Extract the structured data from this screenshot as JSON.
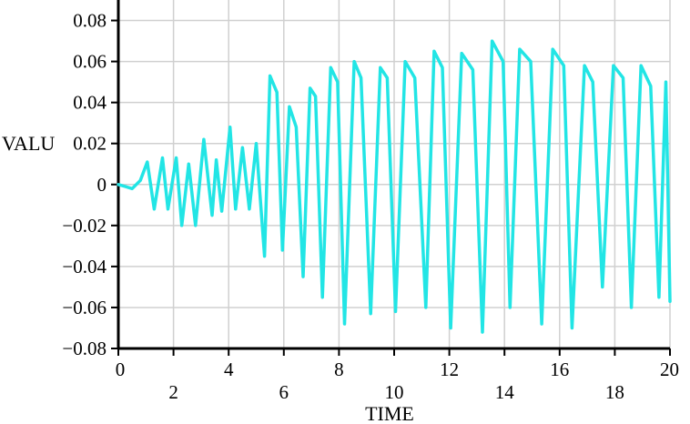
{
  "chart_data": {
    "type": "line",
    "title": "",
    "xlabel": "TIME",
    "ylabel": "VALU",
    "xlim": [
      0,
      20
    ],
    "ylim": [
      -0.08,
      0.09
    ],
    "grid": true,
    "x_ticks": [
      0,
      2,
      4,
      6,
      8,
      10,
      12,
      14,
      16,
      18,
      20
    ],
    "x_tick_labels": [
      "0",
      "2",
      "4",
      "6",
      "8",
      "10",
      "12",
      "14",
      "16",
      "18",
      "20"
    ],
    "y_ticks": [
      -0.08,
      -0.06,
      -0.04,
      -0.02,
      0,
      0.02,
      0.04,
      0.06,
      0.08
    ],
    "y_tick_labels": [
      "−0.08",
      "−0.06",
      "−0.04",
      "−0.02",
      "0",
      "0.02",
      "0.04",
      "0.06",
      "0.08"
    ],
    "series": [
      {
        "color": "#22e5e5",
        "x": [
          0,
          0.25,
          0.5,
          0.8,
          1.05,
          1.3,
          1.6,
          1.8,
          2.1,
          2.3,
          2.55,
          2.8,
          3.1,
          3.4,
          3.55,
          3.75,
          4.05,
          4.25,
          4.5,
          4.75,
          5.0,
          5.3,
          5.5,
          5.75,
          5.95,
          6.2,
          6.45,
          6.7,
          6.95,
          7.15,
          7.4,
          7.7,
          7.95,
          8.2,
          8.55,
          8.8,
          9.15,
          9.5,
          9.75,
          10.05,
          10.4,
          10.75,
          11.15,
          11.45,
          11.75,
          12.05,
          12.45,
          12.85,
          13.2,
          13.55,
          13.95,
          14.2,
          14.55,
          14.95,
          15.35,
          15.75,
          16.15,
          16.45,
          16.9,
          17.2,
          17.55,
          17.95,
          18.3,
          18.6,
          18.95,
          19.3,
          19.6,
          19.85,
          20.0
        ],
        "values": [
          0.0,
          -0.001,
          -0.002,
          0.002,
          0.011,
          -0.012,
          0.013,
          -0.012,
          0.013,
          -0.02,
          0.01,
          -0.02,
          0.022,
          -0.015,
          0.012,
          -0.013,
          0.028,
          -0.012,
          0.018,
          -0.012,
          0.02,
          -0.035,
          0.053,
          0.045,
          -0.032,
          0.038,
          0.028,
          -0.045,
          0.047,
          0.043,
          -0.055,
          0.057,
          0.05,
          -0.068,
          0.06,
          0.052,
          -0.063,
          0.057,
          0.052,
          -0.062,
          0.06,
          0.052,
          -0.06,
          0.065,
          0.057,
          -0.07,
          0.064,
          0.056,
          -0.072,
          0.07,
          0.06,
          -0.06,
          0.066,
          0.06,
          -0.068,
          0.066,
          0.058,
          -0.07,
          0.058,
          0.05,
          -0.05,
          0.058,
          0.052,
          -0.06,
          0.058,
          0.048,
          -0.055,
          0.05,
          -0.057
        ]
      }
    ]
  }
}
